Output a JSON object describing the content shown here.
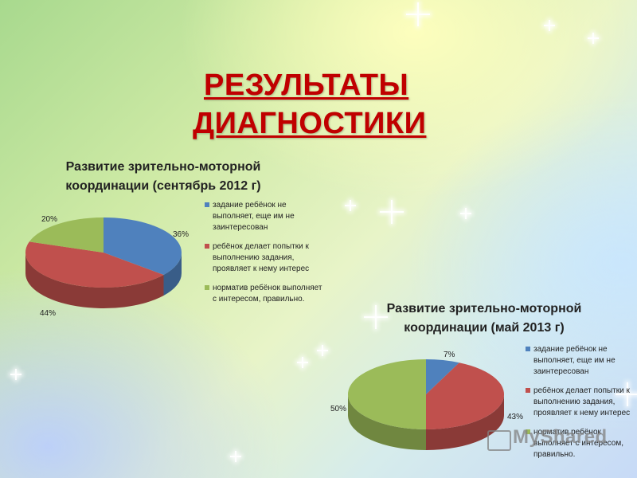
{
  "slide": {
    "title_line1": "РЕЗУЛЬТАТЫ ",
    "title_line2": "ДИАГНОСТИКИ",
    "watermark": "MyShared"
  },
  "colors": {
    "blue": "#4f81bd",
    "red": "#c0504d",
    "green": "#9bbb59",
    "title": "#c00000"
  },
  "chart_data": [
    {
      "type": "pie",
      "title_line1": "Развитие зрительно-моторной",
      "title_line2": "координации (сентябрь 2012 г)",
      "labels": [
        "задание ребёнок не выполняет, еще им не заинтересован",
        "ребёнок делает попытки к выполнению задания, проявляет к нему интерес",
        "норматив ребёнок выполняет с интересом, правильно."
      ],
      "values": [
        36,
        44,
        20
      ],
      "value_labels": [
        "36%",
        "44%",
        "20%"
      ],
      "legend_position": "right"
    },
    {
      "type": "pie",
      "title_line1": "Развитие зрительно-моторной",
      "title_line2": "координации (май 2013 г)",
      "labels": [
        "задание ребёнок не выполняет, еще им не заинтересован",
        "ребёнок делает попытки к выполнению задания, проявляет к нему интерес",
        "норматив ребёнок выполняет с интересом, правильно."
      ],
      "values": [
        7,
        43,
        50
      ],
      "value_labels": [
        "7%",
        "43%",
        "50%"
      ],
      "legend_position": "right"
    }
  ]
}
